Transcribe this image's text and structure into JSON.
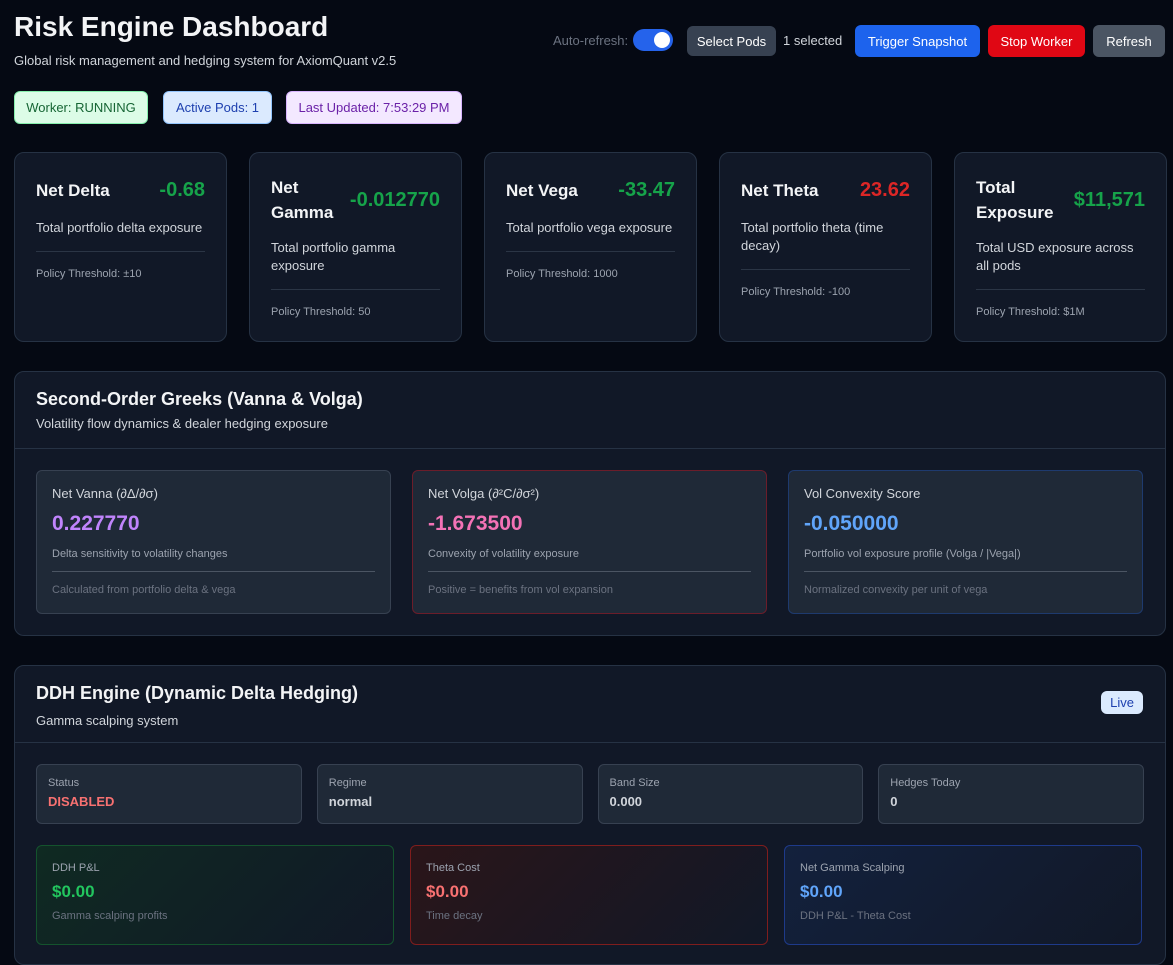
{
  "header": {
    "title": "Risk Engine Dashboard",
    "subtitle": "Global risk management and hedging system for AxiomQuant v2.5"
  },
  "controls": {
    "auto_refresh_label": "Auto-refresh:",
    "select_pods": "Select Pods",
    "selected_count": "1 selected",
    "trigger_snapshot": "Trigger Snapshot",
    "stop_worker": "Stop Worker",
    "refresh": "Refresh"
  },
  "badges": [
    "Worker: RUNNING",
    "Active Pods: 1",
    "Last Updated: 7:53:29 PM"
  ],
  "metrics": [
    {
      "name": "Net Delta",
      "value": "-0.68",
      "description": "Total portfolio delta exposure",
      "threshold": "Policy Threshold: ±10"
    },
    {
      "name": "Net Gamma",
      "value": "-0.012770",
      "description": "Total portfolio gamma exposure",
      "threshold": "Policy Threshold: 50"
    },
    {
      "name": "Net Vega",
      "value": "-33.47",
      "description": "Total portfolio vega exposure",
      "threshold": "Policy Threshold: 1000"
    },
    {
      "name": "Net Theta",
      "value": "23.62",
      "description": "Total portfolio theta (time decay)",
      "threshold": "Policy Threshold: -100"
    },
    {
      "name": "Total Exposure",
      "value": "$11,571",
      "description": "Total USD exposure across all pods",
      "threshold": "Policy Threshold: $1M"
    }
  ],
  "second_order": {
    "title": "Second-Order Greeks (Vanna & Volga)",
    "subtitle": "Volatility flow dynamics & dealer hedging exposure",
    "cards": [
      {
        "label": "Net Vanna (∂Δ/∂σ)",
        "value": "0.227770",
        "description": "Delta sensitivity to volatility changes",
        "note": "Calculated from portfolio delta & vega"
      },
      {
        "label": "Net Volga (∂²C/∂σ²)",
        "value": "-1.673500",
        "description": "Convexity of volatility exposure",
        "note": "Positive = benefits from vol expansion"
      },
      {
        "label": "Vol Convexity Score",
        "value": "-0.050000",
        "description": "Portfolio vol exposure profile (Volga / |Vega|)",
        "note": "Normalized convexity per unit of vega"
      }
    ]
  },
  "ddh": {
    "title": "DDH Engine (Dynamic Delta Hedging)",
    "subtitle": "Gamma scalping system",
    "status_badge": "Live",
    "stats": [
      {
        "label": "Status",
        "value": "DISABLED"
      },
      {
        "label": "Regime",
        "value": "normal"
      },
      {
        "label": "Band Size",
        "value": "0.000"
      },
      {
        "label": "Hedges Today",
        "value": "0"
      }
    ],
    "cards": [
      {
        "label": "DDH P&L",
        "value": "$0.00",
        "description": "Gamma scalping profits"
      },
      {
        "label": "Theta Cost",
        "value": "$0.00",
        "description": "Time decay"
      },
      {
        "label": "Net Gamma Scalping",
        "value": "$0.00",
        "description": "DDH P&L - Theta Cost"
      }
    ]
  }
}
